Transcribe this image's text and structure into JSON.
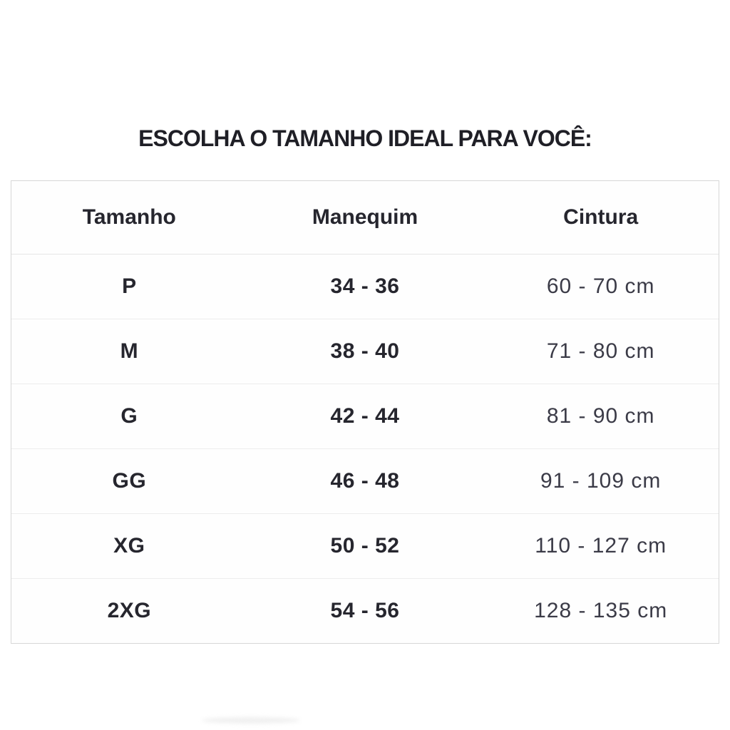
{
  "page": {
    "title": "ESCOLHA O TAMANHO IDEAL PARA VOCÊ:"
  },
  "table": {
    "headers": [
      "Tamanho",
      "Manequim",
      "Cintura"
    ],
    "rows": [
      {
        "size": "P",
        "manequim": "34 - 36",
        "cintura": "60 - 70 cm"
      },
      {
        "size": "M",
        "manequim": "38 - 40",
        "cintura": "71 - 80 cm"
      },
      {
        "size": "G",
        "manequim": "42 - 44",
        "cintura": "81 - 90 cm"
      },
      {
        "size": "GG",
        "manequim": "46 - 48",
        "cintura": "91 - 109 cm"
      },
      {
        "size": "XG",
        "manequim": "50 - 52",
        "cintura": "110 - 127 cm"
      },
      {
        "size": "2XG",
        "manequim": "54 - 56",
        "cintura": "128 - 135 cm"
      }
    ]
  },
  "colors": {
    "background": "#ffffff",
    "heading_text": "#1f1f26",
    "table_text_bold": "#26262e",
    "table_text_light": "#3b3b47",
    "table_border": "#d7d7d7",
    "row_divider": "#ededed"
  },
  "chart_data": {
    "type": "table",
    "title": "ESCOLHA O TAMANHO IDEAL PARA VOCÊ:",
    "columns": [
      "Tamanho",
      "Manequim",
      "Cintura"
    ],
    "rows": [
      [
        "P",
        "34 - 36",
        "60 - 70 cm"
      ],
      [
        "M",
        "38 - 40",
        "71 - 80 cm"
      ],
      [
        "G",
        "42 - 44",
        "81 - 90 cm"
      ],
      [
        "GG",
        "46 - 48",
        "91 - 109 cm"
      ],
      [
        "XG",
        "50 - 52",
        "110 - 127 cm"
      ],
      [
        "2XG",
        "54 - 56",
        "128 - 135 cm"
      ]
    ]
  }
}
